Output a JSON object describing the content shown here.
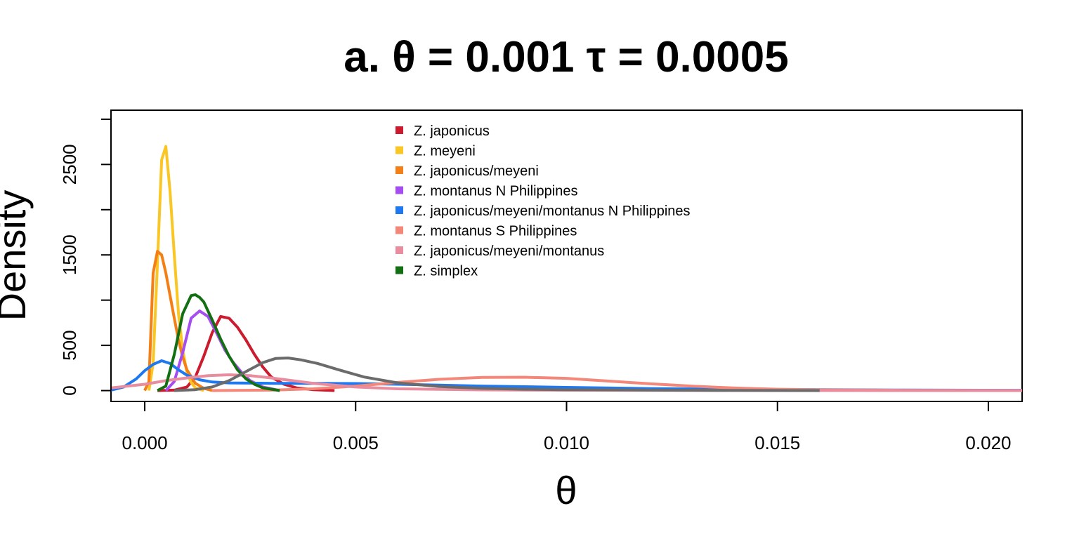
{
  "chart_data": {
    "type": "line",
    "title": "a. θ = 0.001 τ = 0.0005",
    "xlabel": "θ",
    "ylabel": "Density",
    "xlim": [
      -0.0008,
      0.0208
    ],
    "ylim": [
      -120,
      3100
    ],
    "x_ticks": [
      {
        "value": 0.0,
        "label": "0.000"
      },
      {
        "value": 0.005,
        "label": "0.005"
      },
      {
        "value": 0.01,
        "label": "0.010"
      },
      {
        "value": 0.015,
        "label": "0.015"
      },
      {
        "value": 0.02,
        "label": "0.020"
      }
    ],
    "y_ticks": [
      0,
      500,
      1000,
      1500,
      2000,
      2500,
      3000
    ],
    "y_tick_labels": [
      {
        "value": 0,
        "label": "0"
      },
      {
        "value": 500,
        "label": "500"
      },
      {
        "value": 1500,
        "label": "1500"
      },
      {
        "value": 2500,
        "label": "2500"
      }
    ],
    "grid": false,
    "legend_position": "top-center",
    "series": [
      {
        "name": "Z. japonicus",
        "color": "#CC1A2E",
        "x": [
          0.0003,
          0.0007,
          0.001,
          0.0012,
          0.0014,
          0.0016,
          0.0018,
          0.002,
          0.0022,
          0.0024,
          0.0026,
          0.0028,
          0.003,
          0.0033,
          0.0036,
          0.004,
          0.0045
        ],
        "y": [
          0,
          5,
          40,
          150,
          380,
          640,
          820,
          800,
          700,
          560,
          400,
          260,
          150,
          70,
          30,
          10,
          0
        ]
      },
      {
        "name": "Z. meyeni",
        "color": "#F9C623",
        "x": [
          0.0001,
          0.0002,
          0.0003,
          0.0004,
          0.0005,
          0.0006,
          0.0007,
          0.0008,
          0.0009,
          0.001,
          0.0011,
          0.0012,
          0.0014
        ],
        "y": [
          0,
          300,
          1400,
          2550,
          2700,
          2200,
          1500,
          850,
          450,
          200,
          90,
          30,
          0
        ]
      },
      {
        "name": "Z. japonicus/meyeni",
        "color": "#F57F17",
        "x": [
          0.0,
          0.0001,
          0.0002,
          0.0003,
          0.0004,
          0.0005,
          0.0006,
          0.0007,
          0.0008,
          0.0009,
          0.001,
          0.0012,
          0.0014,
          0.0016
        ],
        "y": [
          0,
          100,
          1300,
          1540,
          1500,
          1300,
          1050,
          800,
          560,
          370,
          230,
          80,
          25,
          0
        ]
      },
      {
        "name": "Z. montanus N Philippines",
        "color": "#A64DF2",
        "x": [
          0.0005,
          0.0007,
          0.0009,
          0.0011,
          0.0013,
          0.0015,
          0.0017,
          0.0019,
          0.0021,
          0.0023,
          0.0025,
          0.0028,
          0.0032
        ],
        "y": [
          0,
          100,
          420,
          800,
          880,
          820,
          640,
          450,
          310,
          200,
          110,
          40,
          0
        ]
      },
      {
        "name": "Z. japonicus/meyeni/montanus N Philippines",
        "color": "#1E78F0",
        "x": [
          -0.0008,
          -0.0005,
          -0.0002,
          0.0,
          0.0002,
          0.0004,
          0.0006,
          0.0008,
          0.001,
          0.0013,
          0.0016,
          0.002,
          0.003,
          0.004,
          0.005,
          0.006,
          0.008,
          0.01,
          0.012,
          0.015,
          0.018,
          0.0208
        ],
        "y": [
          5,
          40,
          130,
          220,
          290,
          330,
          300,
          230,
          170,
          120,
          95,
          85,
          80,
          80,
          78,
          70,
          50,
          35,
          22,
          12,
          6,
          3
        ]
      },
      {
        "name": "Z. montanus S Philippines",
        "color": "#F2877A",
        "x": [
          0.0016,
          0.003,
          0.004,
          0.005,
          0.006,
          0.007,
          0.008,
          0.009,
          0.01,
          0.011,
          0.012,
          0.013,
          0.014,
          0.015,
          0.016,
          0.018,
          0.0208
        ],
        "y": [
          0,
          5,
          20,
          50,
          90,
          125,
          145,
          148,
          135,
          105,
          75,
          48,
          28,
          15,
          8,
          3,
          1
        ]
      },
      {
        "name": "Z. japonicus/meyeni/montanus",
        "color": "#E88C9E",
        "x": [
          -0.0008,
          0.0,
          0.0005,
          0.001,
          0.0015,
          0.002,
          0.0025,
          0.003,
          0.0035,
          0.004,
          0.005,
          0.006,
          0.008,
          0.01,
          0.015,
          0.0208
        ],
        "y": [
          30,
          70,
          110,
          140,
          165,
          175,
          165,
          140,
          110,
          80,
          40,
          20,
          8,
          4,
          1,
          0
        ]
      },
      {
        "name": "Z. simplex",
        "color": "#127012",
        "x": [
          0.0003,
          0.0005,
          0.0007,
          0.0009,
          0.0011,
          0.0012,
          0.0013,
          0.0014,
          0.0016,
          0.0018,
          0.002,
          0.0022,
          0.0024,
          0.0026,
          0.0028,
          0.0032
        ],
        "y": [
          0,
          50,
          400,
          850,
          1050,
          1060,
          1030,
          980,
          780,
          570,
          380,
          230,
          130,
          70,
          30,
          0
        ]
      },
      {
        "name": "",
        "color": "#6B6B6B",
        "x": [
          0.0007,
          0.0012,
          0.0016,
          0.002,
          0.0024,
          0.0028,
          0.0031,
          0.0034,
          0.0037,
          0.0041,
          0.0046,
          0.0052,
          0.006,
          0.007,
          0.008,
          0.009,
          0.01,
          0.012,
          0.014,
          0.016
        ],
        "y": [
          0,
          10,
          40,
          110,
          210,
          310,
          355,
          360,
          340,
          300,
          230,
          150,
          85,
          45,
          25,
          15,
          10,
          5,
          2,
          0
        ]
      }
    ]
  }
}
